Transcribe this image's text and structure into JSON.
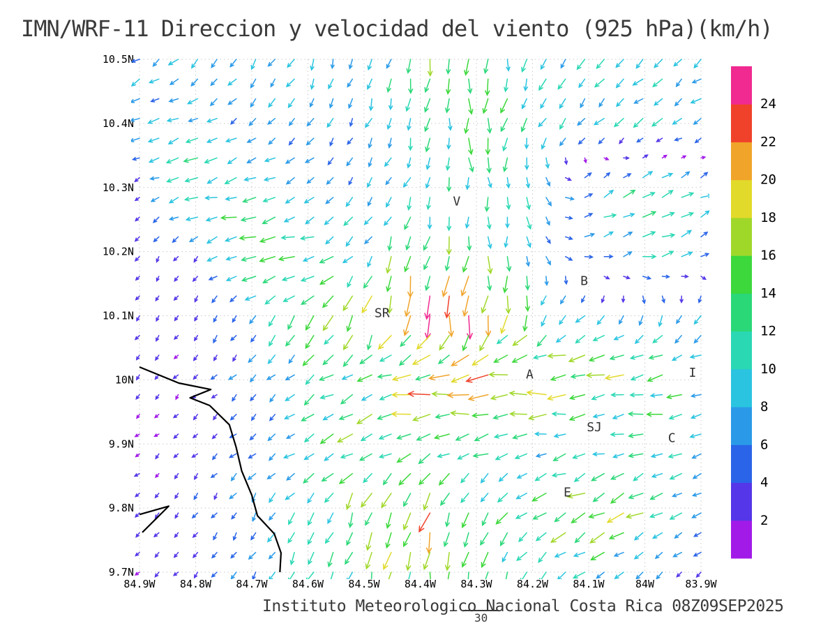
{
  "title": "IMN/WRF-11 Direccion y velocidad del viento (925 hPa)(km/h)",
  "footer": {
    "text": "Instituto Meteorologico Nacional Costa Rica 08Z09SEP2025",
    "page_number": "30"
  },
  "chart_data": {
    "type": "quiver",
    "model": "IMN/WRF-11",
    "variable": "Direccion y velocidad del viento",
    "level": "925 hPa",
    "units": "km/h",
    "valid_time": "08Z09SEP2025",
    "source": "Instituto Meteorologico Nacional Costa Rica",
    "x_axis": {
      "labels": [
        "84.9W",
        "84.8W",
        "84.7W",
        "84.6W",
        "84.5W",
        "84.4W",
        "84.3W",
        "84.2W",
        "84.1W",
        "84W",
        "83.9W"
      ],
      "values": [
        84.9,
        84.8,
        84.7,
        84.6,
        84.5,
        84.4,
        84.3,
        84.2,
        84.1,
        84.0,
        83.9
      ],
      "direction": "longitude_west"
    },
    "y_axis": {
      "labels": [
        "10.5N",
        "10.4N",
        "10.3N",
        "10.2N",
        "10.1N",
        "10N",
        "9.9N",
        "9.8N",
        "9.7N"
      ],
      "values": [
        10.5,
        10.4,
        10.3,
        10.2,
        10.1,
        10.0,
        9.9,
        9.8,
        9.7
      ],
      "direction": "latitude_north"
    },
    "colorbar": {
      "levels": [
        2,
        4,
        6,
        8,
        10,
        12,
        14,
        16,
        18,
        20,
        22,
        24
      ],
      "colors": [
        "#a21ae8",
        "#5536e8",
        "#2a64e8",
        "#2a9ae8",
        "#2ac4e0",
        "#2ad8b4",
        "#2ad878",
        "#3cd83c",
        "#a0d82a",
        "#e2da2a",
        "#f0a42a",
        "#f0422a",
        "#f02a90"
      ]
    },
    "stations": [
      {
        "label": "V",
        "lon": 84.335,
        "lat": 10.272
      },
      {
        "label": "SR",
        "lon": 84.468,
        "lat": 10.098
      },
      {
        "label": "B",
        "lon": 84.108,
        "lat": 10.148
      },
      {
        "label": "A",
        "lon": 84.205,
        "lat": 10.002
      },
      {
        "label": "SJ",
        "lon": 84.09,
        "lat": 9.92
      },
      {
        "label": "C",
        "lon": 83.952,
        "lat": 9.903
      },
      {
        "label": "E",
        "lon": 84.138,
        "lat": 9.818
      },
      {
        "label": "I",
        "lon": 83.915,
        "lat": 10.005
      }
    ],
    "wind_grid": {
      "lons": [
        84.9,
        84.8,
        84.7,
        84.6,
        84.5,
        84.4,
        84.3,
        84.2,
        84.1,
        84.0,
        83.9
      ],
      "lats": [
        10.5,
        10.4,
        10.3,
        10.2,
        10.1,
        10.0,
        9.9,
        9.8,
        9.7
      ],
      "u": [
        [
          -6,
          -5,
          -4,
          -3,
          -2,
          -2,
          0,
          -3,
          -5,
          -6,
          -7
        ],
        [
          -8,
          -7,
          -5,
          -4,
          -3,
          -2,
          -1,
          -4,
          -6,
          -7,
          -8
        ],
        [
          -1.5,
          -12,
          -10,
          -6,
          -4,
          -3,
          2,
          3,
          6,
          10,
          8
        ],
        [
          -1.5,
          -2,
          -14,
          -12,
          -6,
          -4,
          -2,
          2,
          6,
          12,
          6
        ],
        [
          -1.2,
          -1.8,
          -4,
          -8,
          -6,
          -4,
          -2,
          -4,
          -6,
          -4,
          -3
        ],
        [
          -1.2,
          -1.8,
          -4,
          -8,
          -10,
          -18,
          -22,
          -20,
          -16,
          -14,
          -10
        ],
        [
          -1.5,
          -2,
          -4,
          -8,
          -14,
          -12,
          -12,
          -10,
          -8,
          -10,
          -8
        ],
        [
          -1.5,
          -2,
          -4,
          -6,
          -4,
          -6,
          -4,
          -10,
          -16,
          -12,
          -6
        ],
        [
          -1.5,
          -2,
          -3,
          -4,
          -4,
          -2,
          -3,
          -6,
          -8,
          -5,
          -3
        ]
      ],
      "v": [
        [
          -4,
          -5,
          -6,
          -7,
          -8,
          -12,
          -15,
          -10,
          -8,
          -7,
          -6
        ],
        [
          -2,
          -3,
          -4,
          -5,
          -6,
          -9,
          -14,
          -9,
          -6,
          -5,
          -4
        ],
        [
          -1.5,
          -3,
          -3,
          -4,
          -5,
          -8,
          -10,
          -8,
          4,
          6,
          4
        ],
        [
          -2,
          -2.5,
          -3,
          -4,
          -8,
          -16,
          -14,
          -8,
          2,
          4,
          2
        ],
        [
          -2,
          -2.5,
          -5,
          -10,
          -16,
          -20,
          -22,
          -12,
          -6,
          -8,
          -6
        ],
        [
          -1.5,
          -2,
          -4,
          -6,
          -4,
          -2,
          -2,
          -1,
          -2,
          -2,
          -2
        ],
        [
          -1.2,
          -2,
          -3,
          -5,
          -6,
          -4,
          -3,
          -2,
          -2,
          -3,
          -3
        ],
        [
          -1.5,
          -2.5,
          -6,
          -8,
          -14,
          -18,
          -12,
          -8,
          -8,
          -6,
          -4
        ],
        [
          -1.5,
          -2.5,
          -5,
          -8,
          -12,
          -15,
          -12,
          -8,
          -6,
          -4,
          -3
        ]
      ]
    },
    "coastline": [
      [
        [
          84.9,
          10.02
        ],
        [
          84.83,
          9.995
        ],
        [
          84.773,
          9.985
        ],
        [
          84.81,
          9.972
        ],
        [
          84.775,
          9.96
        ],
        [
          84.74,
          9.93
        ],
        [
          84.728,
          9.895
        ],
        [
          84.718,
          9.858
        ],
        [
          84.7,
          9.82
        ],
        [
          84.69,
          9.788
        ],
        [
          84.66,
          9.76
        ],
        [
          84.648,
          9.73
        ],
        [
          84.65,
          9.7
        ]
      ],
      [
        [
          84.9,
          9.79
        ],
        [
          84.848,
          9.803
        ],
        [
          84.895,
          9.762
        ]
      ]
    ]
  }
}
